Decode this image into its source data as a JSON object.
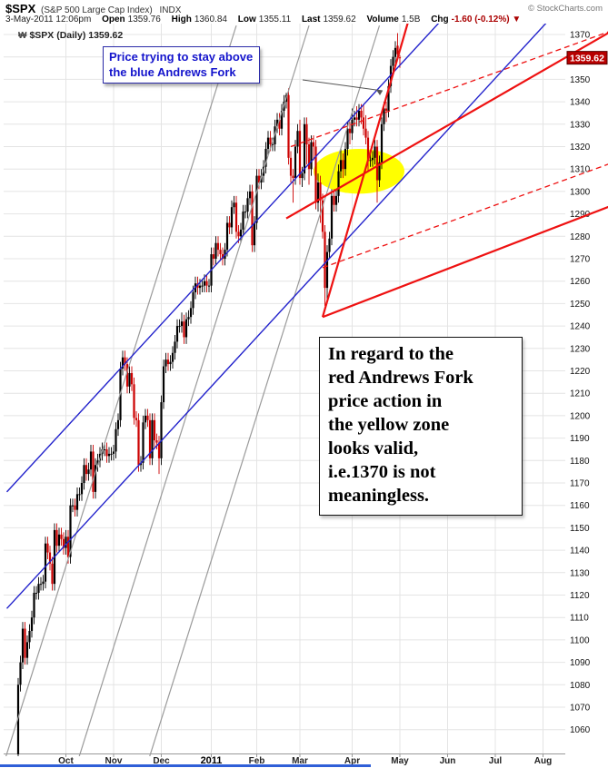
{
  "header": {
    "symbol": "$SPX",
    "name": "(S&P 500 Large Cap Index)",
    "exchange": "INDX",
    "copyright": "© StockCharts.com",
    "datetime": "3-May-2011 12:06pm",
    "quote": {
      "open_label": "Open",
      "open": "1359.76",
      "high_label": "High",
      "high": "1360.84",
      "low_label": "Low",
      "low": "1355.11",
      "last_label": "Last",
      "last": "1359.62",
      "volume_label": "Volume",
      "volume": "1.5B",
      "chg_label": "Chg",
      "chg": "-1.60 (-0.12%)",
      "chg_dir": "▼"
    }
  },
  "legend": {
    "icon_char": "₩",
    "text": "$SPX (Daily) 1359.62"
  },
  "annotations": {
    "blue_note": {
      "lines": [
        "Price trying to stay above",
        "the blue Andrews Fork"
      ]
    },
    "black_note": {
      "lines": [
        "In regard to the",
        "red Andrews Fork",
        "price action in",
        "the yellow zone",
        "looks valid,",
        "i.e.1370 is not",
        "meaningless."
      ]
    }
  },
  "price_tag": {
    "value": "1359.62",
    "p": 1359.62
  },
  "colors": {
    "candle_up": "#000000",
    "candle_down": "#cc0000",
    "grid": "#e4e4e4",
    "axis_line": "#999999",
    "gray_line": "#9a9a9a",
    "blue_line": "#2323cc",
    "red_line": "#ee1111",
    "yellow": "#ffff00",
    "tag_bg": "#b80000",
    "tag_border": "#550000",
    "pointer": "#555555"
  },
  "chart_data": {
    "type": "candlestick",
    "title": "$SPX (S&P 500 Large Cap Index) INDX",
    "timeframe": "Daily",
    "last": 1359.62,
    "y_axis": {
      "min": 1060,
      "max": 1370,
      "step": 10
    },
    "x_labels": [
      {
        "label": "Oct",
        "t": 21
      },
      {
        "label": "Nov",
        "t": 42
      },
      {
        "label": "Dec",
        "t": 63
      },
      {
        "label": "2011",
        "t": 85,
        "year": true
      },
      {
        "label": "Feb",
        "t": 105
      },
      {
        "label": "Mar",
        "t": 124
      },
      {
        "label": "Apr",
        "t": 147
      },
      {
        "label": "May",
        "t": 168
      },
      {
        "label": "Jun",
        "t": 189
      },
      {
        "label": "Jul",
        "t": 210
      },
      {
        "label": "Aug",
        "t": 231
      }
    ],
    "ohlc": [
      [
        1049,
        1083,
        1046,
        1080
      ],
      [
        1080,
        1093,
        1077,
        1090
      ],
      [
        1090,
        1108,
        1087,
        1105
      ],
      [
        1105,
        1108,
        1089,
        1092
      ],
      [
        1092,
        1102,
        1089,
        1099
      ],
      [
        1099,
        1107,
        1096,
        1104
      ],
      [
        1104,
        1113,
        1101,
        1110
      ],
      [
        1110,
        1124,
        1107,
        1121
      ],
      [
        1121,
        1124,
        1118,
        1121
      ],
      [
        1121,
        1128,
        1118,
        1125
      ],
      [
        1125,
        1128,
        1122,
        1125
      ],
      [
        1125,
        1129,
        1122,
        1126
      ],
      [
        1126,
        1146,
        1123,
        1143
      ],
      [
        1143,
        1146,
        1136,
        1139
      ],
      [
        1139,
        1142,
        1131,
        1134
      ],
      [
        1134,
        1137,
        1122,
        1125
      ],
      [
        1125,
        1152,
        1122,
        1149
      ],
      [
        1149,
        1152,
        1139,
        1142
      ],
      [
        1142,
        1150,
        1139,
        1147
      ],
      [
        1147,
        1150,
        1142,
        1145
      ],
      [
        1145,
        1148,
        1138,
        1141
      ],
      [
        1141,
        1149,
        1138,
        1146
      ],
      [
        1146,
        1149,
        1134,
        1137
      ],
      [
        1137,
        1163,
        1134,
        1160
      ],
      [
        1160,
        1163,
        1157,
        1160
      ],
      [
        1160,
        1163,
        1155,
        1158
      ],
      [
        1158,
        1168,
        1155,
        1165
      ],
      [
        1165,
        1168,
        1162,
        1165
      ],
      [
        1165,
        1173,
        1162,
        1170
      ],
      [
        1170,
        1181,
        1167,
        1178
      ],
      [
        1178,
        1181,
        1171,
        1174
      ],
      [
        1174,
        1179,
        1171,
        1176
      ],
      [
        1176,
        1187,
        1173,
        1184
      ],
      [
        1184,
        1187,
        1163,
        1166
      ],
      [
        1166,
        1181,
        1163,
        1178
      ],
      [
        1178,
        1183,
        1175,
        1180
      ],
      [
        1180,
        1186,
        1177,
        1183
      ],
      [
        1183,
        1188,
        1180,
        1185
      ],
      [
        1185,
        1188,
        1182,
        1185
      ],
      [
        1185,
        1188,
        1179,
        1182
      ],
      [
        1182,
        1186,
        1179,
        1183
      ],
      [
        1183,
        1186,
        1180,
        1183
      ],
      [
        1183,
        1187,
        1180,
        1184
      ],
      [
        1184,
        1197,
        1181,
        1194
      ],
      [
        1194,
        1201,
        1191,
        1198
      ],
      [
        1198,
        1224,
        1195,
        1221
      ],
      [
        1221,
        1229,
        1218,
        1226
      ],
      [
        1226,
        1229,
        1220,
        1223
      ],
      [
        1223,
        1226,
        1210,
        1213
      ],
      [
        1213,
        1222,
        1210,
        1219
      ],
      [
        1219,
        1222,
        1211,
        1214
      ],
      [
        1214,
        1217,
        1196,
        1199
      ],
      [
        1199,
        1202,
        1195,
        1198
      ],
      [
        1198,
        1201,
        1175,
        1178
      ],
      [
        1178,
        1182,
        1175,
        1179
      ],
      [
        1179,
        1200,
        1176,
        1197
      ],
      [
        1197,
        1203,
        1194,
        1200
      ],
      [
        1200,
        1203,
        1195,
        1198
      ],
      [
        1198,
        1201,
        1178,
        1181
      ],
      [
        1181,
        1201,
        1178,
        1198
      ],
      [
        1198,
        1201,
        1186,
        1189
      ],
      [
        1189,
        1192,
        1185,
        1188
      ],
      [
        1188,
        1191,
        1174,
        1181
      ],
      [
        1181,
        1209,
        1178,
        1206
      ],
      [
        1206,
        1225,
        1203,
        1222
      ],
      [
        1222,
        1228,
        1219,
        1225
      ],
      [
        1225,
        1228,
        1220,
        1223
      ],
      [
        1223,
        1227,
        1220,
        1224
      ],
      [
        1224,
        1231,
        1221,
        1228
      ],
      [
        1228,
        1236,
        1225,
        1233
      ],
      [
        1233,
        1243,
        1230,
        1240
      ],
      [
        1240,
        1243,
        1237,
        1240
      ],
      [
        1240,
        1246,
        1237,
        1242
      ],
      [
        1242,
        1245,
        1232,
        1235
      ],
      [
        1235,
        1246,
        1232,
        1243
      ],
      [
        1243,
        1247,
        1240,
        1244
      ],
      [
        1244,
        1251,
        1241,
        1248
      ],
      [
        1248,
        1258,
        1245,
        1255
      ],
      [
        1255,
        1262,
        1252,
        1259
      ],
      [
        1259,
        1262,
        1254,
        1257
      ],
      [
        1257,
        1261,
        1254,
        1258
      ],
      [
        1258,
        1261,
        1255,
        1258
      ],
      [
        1258,
        1263,
        1255,
        1260
      ],
      [
        1260,
        1263,
        1255,
        1258
      ],
      [
        1258,
        1261,
        1255,
        1258
      ],
      [
        1258,
        1275,
        1255,
        1272
      ],
      [
        1272,
        1275,
        1267,
        1270
      ],
      [
        1270,
        1280,
        1267,
        1277
      ],
      [
        1277,
        1280,
        1271,
        1274
      ],
      [
        1274,
        1277,
        1269,
        1272
      ],
      [
        1272,
        1275,
        1267,
        1270
      ],
      [
        1270,
        1277,
        1267,
        1274
      ],
      [
        1274,
        1289,
        1271,
        1286
      ],
      [
        1286,
        1289,
        1281,
        1284
      ],
      [
        1284,
        1296,
        1281,
        1293
      ],
      [
        1293,
        1298,
        1290,
        1295
      ],
      [
        1295,
        1298,
        1279,
        1282
      ],
      [
        1282,
        1285,
        1277,
        1280
      ],
      [
        1280,
        1286,
        1277,
        1283
      ],
      [
        1283,
        1294,
        1280,
        1291
      ],
      [
        1291,
        1294,
        1288,
        1291
      ],
      [
        1291,
        1300,
        1288,
        1297
      ],
      [
        1297,
        1303,
        1294,
        1300
      ],
      [
        1300,
        1303,
        1273,
        1276
      ],
      [
        1276,
        1289,
        1273,
        1286
      ],
      [
        1286,
        1310,
        1283,
        1307
      ],
      [
        1307,
        1310,
        1301,
        1304
      ],
      [
        1304,
        1310,
        1301,
        1307
      ],
      [
        1307,
        1314,
        1304,
        1311
      ],
      [
        1311,
        1322,
        1308,
        1319
      ],
      [
        1319,
        1327,
        1316,
        1324
      ],
      [
        1324,
        1327,
        1318,
        1321
      ],
      [
        1321,
        1324,
        1318,
        1321
      ],
      [
        1321,
        1332,
        1318,
        1329
      ],
      [
        1329,
        1335,
        1326,
        1332
      ],
      [
        1332,
        1335,
        1325,
        1328
      ],
      [
        1328,
        1339,
        1325,
        1336
      ],
      [
        1336,
        1343,
        1333,
        1340
      ],
      [
        1340,
        1344,
        1337,
        1343
      ],
      [
        1343,
        1346,
        1312,
        1315
      ],
      [
        1315,
        1318,
        1304,
        1307
      ],
      [
        1307,
        1310,
        1295,
        1306
      ],
      [
        1306,
        1323,
        1303,
        1320
      ],
      [
        1320,
        1330,
        1317,
        1327
      ],
      [
        1327,
        1332,
        1303,
        1306
      ],
      [
        1306,
        1311,
        1302,
        1308
      ],
      [
        1308,
        1333,
        1305,
        1330
      ],
      [
        1330,
        1333,
        1312,
        1321
      ],
      [
        1321,
        1324,
        1303,
        1310
      ],
      [
        1310,
        1325,
        1307,
        1322
      ],
      [
        1322,
        1325,
        1314,
        1320
      ],
      [
        1320,
        1323,
        1292,
        1295
      ],
      [
        1295,
        1308,
        1291,
        1304
      ],
      [
        1304,
        1307,
        1286,
        1296
      ],
      [
        1296,
        1299,
        1279,
        1282
      ],
      [
        1282,
        1285,
        1249,
        1257
      ],
      [
        1257,
        1276,
        1250,
        1273
      ],
      [
        1273,
        1282,
        1270,
        1279
      ],
      [
        1279,
        1301,
        1276,
        1298
      ],
      [
        1298,
        1301,
        1291,
        1294
      ],
      [
        1294,
        1301,
        1291,
        1298
      ],
      [
        1298,
        1312,
        1295,
        1309
      ],
      [
        1309,
        1319,
        1306,
        1314
      ],
      [
        1314,
        1317,
        1306,
        1310
      ],
      [
        1310,
        1322,
        1307,
        1319
      ],
      [
        1319,
        1331,
        1316,
        1328
      ],
      [
        1328,
        1331,
        1321,
        1326
      ],
      [
        1326,
        1337,
        1323,
        1332
      ],
      [
        1332,
        1336,
        1329,
        1333
      ],
      [
        1333,
        1338,
        1329,
        1332
      ],
      [
        1332,
        1339,
        1329,
        1336
      ],
      [
        1336,
        1339,
        1330,
        1333
      ],
      [
        1333,
        1339,
        1325,
        1328
      ],
      [
        1328,
        1334,
        1321,
        1324
      ],
      [
        1324,
        1327,
        1309,
        1314
      ],
      [
        1314,
        1317,
        1311,
        1314
      ],
      [
        1314,
        1318,
        1311,
        1315
      ],
      [
        1315,
        1323,
        1312,
        1320
      ],
      [
        1320,
        1323,
        1295,
        1305
      ],
      [
        1305,
        1316,
        1302,
        1313
      ],
      [
        1313,
        1333,
        1310,
        1330
      ],
      [
        1330,
        1340,
        1327,
        1337
      ],
      [
        1337,
        1340,
        1331,
        1336
      ],
      [
        1336,
        1350,
        1333,
        1347
      ],
      [
        1347,
        1359,
        1344,
        1356
      ],
      [
        1356,
        1363,
        1353,
        1360
      ],
      [
        1360,
        1367,
        1357,
        1364
      ],
      [
        1365,
        1370.6,
        1358.7,
        1361.2
      ],
      [
        1359.8,
        1360.8,
        1355.1,
        1359.6
      ]
    ],
    "overlays": {
      "line_groups": [
        {
          "name": "gray-trend-channel",
          "color": "#9a9a9a",
          "width": 1.2,
          "lines": [
            [
              [
                -6,
                1046
              ],
              [
                96,
                1374
              ]
            ],
            [
              [
                25,
                1042
              ],
              [
                128,
                1374
              ]
            ],
            [
              [
                56,
                1042
              ],
              [
                159,
                1374
              ]
            ]
          ]
        },
        {
          "name": "blue-andrews-fork",
          "color": "#2323cc",
          "width": 1.4,
          "lines": [
            [
              [
                -5,
                1166
              ],
              [
                235,
                1430
              ]
            ],
            [
              [
                -5,
                1114
              ],
              [
                235,
                1378
              ]
            ]
          ]
        },
        {
          "name": "red-andrews-fork",
          "color": "#ee1111",
          "width": 2.2,
          "lines": [
            [
              [
                118,
                1288
              ],
              [
                262,
                1372
              ]
            ],
            [
              [
                134,
                1244
              ],
              [
                174,
                1384
              ]
            ],
            [
              [
                134,
                1244
              ],
              [
                262,
                1294
              ]
            ]
          ]
        },
        {
          "name": "red-andrews-warning-dashed",
          "color": "#ee1111",
          "width": 1.3,
          "dash": "6 4",
          "lines": [
            [
              [
                120,
                1320
              ],
              [
                262,
                1372
              ]
            ],
            [
              [
                134,
                1266
              ],
              [
                262,
                1313
              ]
            ]
          ]
        }
      ],
      "highlight_ellipse": {
        "t": 150,
        "p": 1309,
        "rx_days": 20,
        "ry_points": 10
      }
    }
  }
}
